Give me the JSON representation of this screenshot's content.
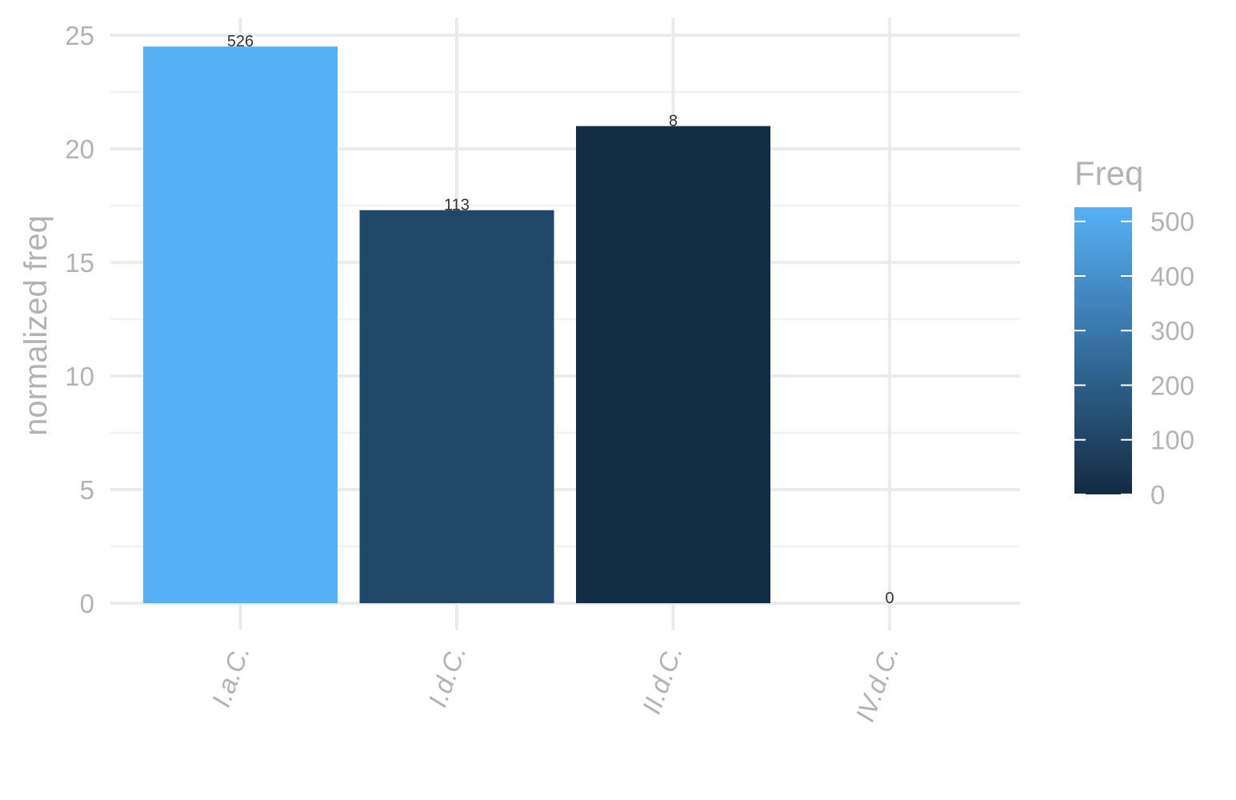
{
  "chart_data": {
    "type": "bar",
    "categories": [
      "I.a.C.",
      "I.d.C.",
      "II.d.C.",
      "IV.d.C."
    ],
    "values": [
      24.5,
      17.3,
      21.0,
      0
    ],
    "labels": [
      "526",
      "113",
      "8",
      "0"
    ],
    "fill_by": [
      526,
      113,
      8,
      0
    ],
    "ylabel": "normalized freq",
    "xlabel": "",
    "ylim": [
      0,
      25.5
    ],
    "yticks": [
      0,
      5,
      10,
      15,
      20,
      25
    ],
    "grid": true,
    "legend": {
      "title": "Freq",
      "placement": "right",
      "range": [
        0,
        526
      ],
      "ticks": [
        0,
        100,
        200,
        300,
        400,
        500
      ],
      "color_low": "#132b43",
      "color_high": "#56b1f7"
    }
  }
}
